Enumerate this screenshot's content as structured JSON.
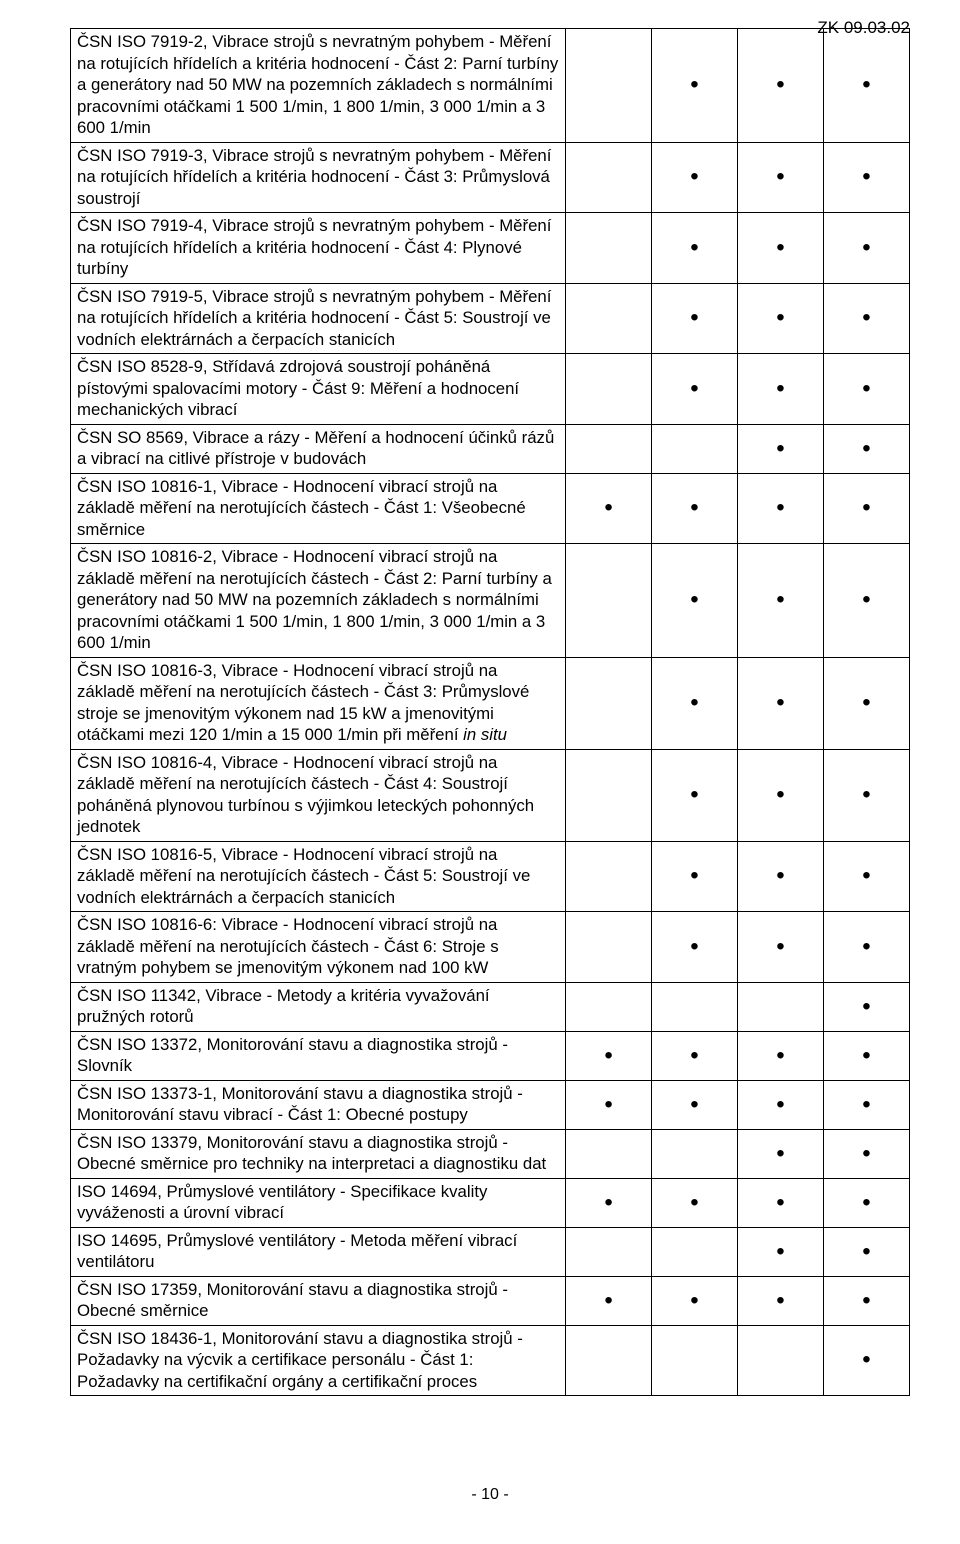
{
  "header": {
    "code": "ZK 09.03.02"
  },
  "footer": {
    "page": "- 10 -"
  },
  "rows": [
    {
      "desc": "ČSN ISO 7919-2, Vibrace strojů s nevratným pohybem - Měření na rotujících hřídelích a kritéria hodnocení - Část 2: Parní turbíny a generátory nad 50 MW na pozemních základech s normálními pracovními otáčkami 1 500 1/min, 1 800 1/min, 3 000 1/min a 3 600 1/min",
      "dots": [
        false,
        true,
        true,
        true
      ]
    },
    {
      "desc": "ČSN ISO 7919-3, Vibrace strojů s nevratným pohybem - Měření na rotujících hřídelích a kritéria hodnocení - Část 3: Průmyslová soustrojí",
      "dots": [
        false,
        true,
        true,
        true
      ]
    },
    {
      "desc": "ČSN ISO 7919-4, Vibrace strojů s nevratným pohybem - Měření na rotujících hřídelích a kritéria hodnocení - Část 4: Plynové turbíny",
      "dots": [
        false,
        true,
        true,
        true
      ]
    },
    {
      "desc": "ČSN ISO 7919-5, Vibrace strojů s nevratným pohybem - Měření na rotujících hřídelích a kritéria hodnocení - Část 5: Soustrojí ve vodních elektrárnách a čerpacích stanicích",
      "dots": [
        false,
        true,
        true,
        true
      ]
    },
    {
      "desc": "ČSN ISO 8528-9, Střídavá zdrojová soustrojí poháněná pístovými spalovacími motory - Část 9: Měření a hodnocení mechanických vibrací",
      "dots": [
        false,
        true,
        true,
        true
      ]
    },
    {
      "desc": "ČSN SO 8569, Vibrace a rázy - Měření a hodnocení účinků rázů a vibrací na citlivé přístroje v budovách",
      "dots": [
        false,
        false,
        true,
        true
      ]
    },
    {
      "desc": "ČSN ISO 10816-1, Vibrace - Hodnocení vibrací strojů na základě měření na nerotujících částech - Část 1: Všeobecné směrnice",
      "dots": [
        true,
        true,
        true,
        true
      ]
    },
    {
      "desc": "ČSN ISO 10816-2, Vibrace - Hodnocení vibrací strojů na základě měření na nerotujících částech - Část 2: Parní turbíny a generátory nad 50 MW na pozemních základech s normálními pracovními otáčkami 1 500 1/min, 1 800 1/min, 3 000 1/min a 3 600 1/min",
      "dots": [
        false,
        true,
        true,
        true
      ]
    },
    {
      "desc": "ČSN ISO 10816-3, Vibrace - Hodnocení vibrací strojů na základě měření na nerotujících částech - Část 3: Průmyslové stroje se jmenovitým výkonem nad 15 kW a jmenovitými otáčkami mezi 120 1/min a 15 000 1/min při měření <i>in situ</i>",
      "dots": [
        false,
        true,
        true,
        true
      ]
    },
    {
      "desc": "ČSN ISO 10816-4, Vibrace - Hodnocení vibrací strojů na základě měření na nerotujících částech - Část 4: Soustrojí poháněná plynovou turbínou s výjimkou leteckých pohonných jednotek",
      "dots": [
        false,
        true,
        true,
        true
      ]
    },
    {
      "desc": "ČSN ISO 10816-5, Vibrace - Hodnocení vibrací strojů na základě měření na nerotujících částech - Část 5: Soustrojí ve vodních elektrárnách a čerpacích stanicích",
      "dots": [
        false,
        true,
        true,
        true
      ]
    },
    {
      "desc": "ČSN ISO 10816-6: Vibrace - Hodnocení vibrací strojů na základě měření na nerotujících částech - Část 6: Stroje s vratným pohybem se jmenovitým výkonem nad 100 kW",
      "dots": [
        false,
        true,
        true,
        true
      ]
    },
    {
      "desc": "ČSN ISO 11342, Vibrace - Metody a kritéria vyvažování pružných rotorů",
      "dots": [
        false,
        false,
        false,
        true
      ]
    },
    {
      "desc": "ČSN ISO 13372, Monitorování stavu a diagnostika strojů - Slovník",
      "dots": [
        true,
        true,
        true,
        true
      ]
    },
    {
      "desc": "ČSN ISO 13373-1, Monitorování stavu a diagnostika strojů - Monitorování stavu vibrací - Část 1: Obecné postupy",
      "dots": [
        true,
        true,
        true,
        true
      ]
    },
    {
      "desc": "ČSN ISO 13379, Monitorování stavu a diagnostika strojů - Obecné směrnice pro techniky na interpretaci a diagnostiku dat",
      "dots": [
        false,
        false,
        true,
        true
      ]
    },
    {
      "desc": "ISO 14694, Průmyslové ventilátory - Specifikace kvality vyváženosti a úrovní vibrací",
      "dots": [
        true,
        true,
        true,
        true
      ]
    },
    {
      "desc": "ISO 14695, Průmyslové ventilátory - Metoda měření vibrací ventilátoru",
      "dots": [
        false,
        false,
        true,
        true
      ]
    },
    {
      "desc": "ČSN ISO 17359, Monitorování stavu a diagnostika strojů - Obecné směrnice",
      "dots": [
        true,
        true,
        true,
        true
      ]
    },
    {
      "desc": "ČSN ISO 18436-1, Monitorování stavu a diagnostika strojů - Požadavky na výcvik a certifikace personálu - Část 1: Požadavky na certifikační orgány a certifikační proces",
      "dots": [
        false,
        false,
        false,
        true
      ]
    }
  ]
}
